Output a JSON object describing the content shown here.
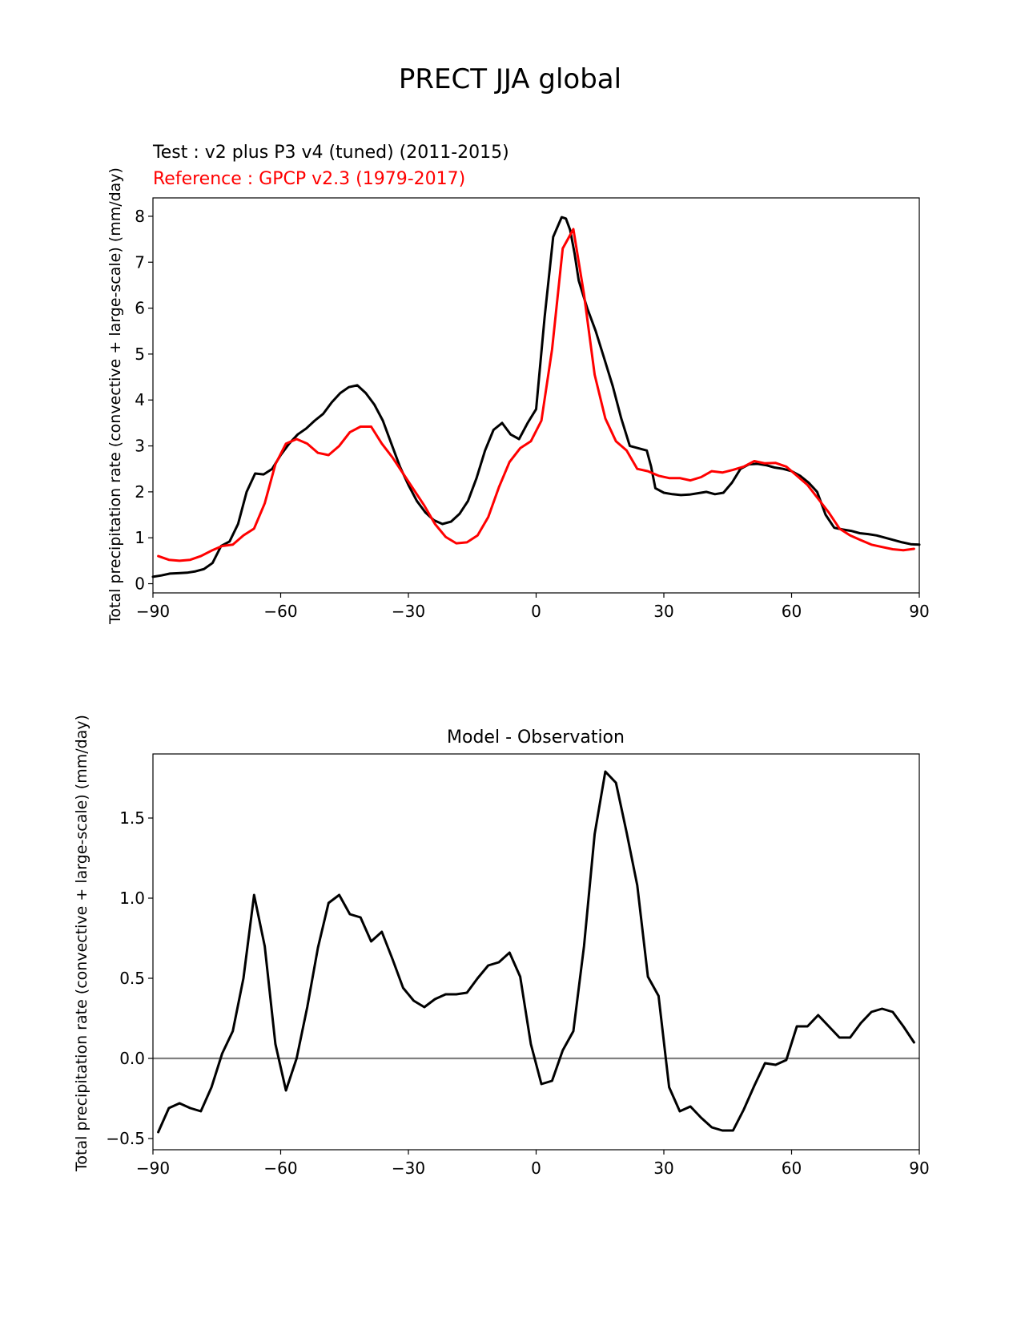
{
  "chart_data": [
    {
      "type": "line",
      "suptitle": "PRECT JJA global",
      "test_label": "Test : v2 plus P3 v4 (tuned) (2011-2015)",
      "reference_label": "Reference : GPCP v2.3 (1979-2017)",
      "xlabel": "",
      "ylabel": "Total precipitation rate (convective + large-scale) (mm/day)",
      "xlim": [
        -90,
        90
      ],
      "ylim": [
        -0.2,
        8.4
      ],
      "xticks": [
        -90,
        -60,
        -30,
        0,
        30,
        60,
        90
      ],
      "xtick_labels": [
        "−90",
        "−60",
        "−30",
        "0",
        "30",
        "60",
        "90"
      ],
      "yticks": [
        0,
        1,
        2,
        3,
        4,
        5,
        6,
        7,
        8
      ],
      "ytick_labels": [
        "0",
        "1",
        "2",
        "3",
        "4",
        "5",
        "6",
        "7",
        "8"
      ],
      "series": [
        {
          "name": "Test : v2 plus P3 v4 (tuned) (2011-2015)",
          "color": "#000000",
          "x": [
            -90,
            -88,
            -86,
            -84,
            -82,
            -80,
            -78,
            -76,
            -74,
            -72,
            -70,
            -68,
            -66,
            -64,
            -62,
            -60,
            -58,
            -56,
            -54,
            -52,
            -50,
            -48,
            -46,
            -44,
            -42,
            -40,
            -38,
            -36,
            -34,
            -32,
            -30,
            -28,
            -26,
            -24,
            -22,
            -20,
            -18,
            -16,
            -14,
            -12,
            -10,
            -8,
            -6,
            -4,
            -2,
            0,
            2,
            4,
            6,
            7,
            8,
            9,
            10,
            12,
            14,
            16,
            18,
            20,
            22,
            24,
            26,
            27,
            28,
            30,
            32,
            34,
            36,
            38,
            40,
            42,
            44,
            46,
            48,
            50,
            52,
            54,
            56,
            58,
            60,
            62,
            64,
            66,
            68,
            70,
            72,
            74,
            76,
            78,
            80,
            82,
            84,
            86,
            88,
            90
          ],
          "values": [
            0.15,
            0.18,
            0.22,
            0.23,
            0.24,
            0.27,
            0.32,
            0.45,
            0.82,
            0.92,
            1.3,
            2.0,
            2.4,
            2.38,
            2.5,
            2.8,
            3.05,
            3.25,
            3.38,
            3.55,
            3.7,
            3.95,
            4.15,
            4.28,
            4.32,
            4.15,
            3.9,
            3.55,
            3.05,
            2.55,
            2.15,
            1.8,
            1.55,
            1.38,
            1.3,
            1.35,
            1.52,
            1.8,
            2.3,
            2.9,
            3.35,
            3.5,
            3.25,
            3.15,
            3.5,
            3.8,
            5.8,
            7.55,
            7.98,
            7.95,
            7.7,
            7.2,
            6.6,
            6.0,
            5.5,
            4.9,
            4.3,
            3.6,
            3.0,
            2.95,
            2.9,
            2.55,
            2.08,
            1.98,
            1.95,
            1.93,
            1.94,
            1.97,
            2.0,
            1.95,
            1.98,
            2.2,
            2.5,
            2.6,
            2.61,
            2.58,
            2.53,
            2.5,
            2.45,
            2.35,
            2.2,
            2.0,
            1.5,
            1.22,
            1.18,
            1.15,
            1.1,
            1.08,
            1.05,
            1.0,
            0.95,
            0.9,
            0.86,
            0.85
          ]
        },
        {
          "name": "Reference : GPCP v2.3 (1979-2017)",
          "color": "#ff0000",
          "x": [
            -88.75,
            -86.25,
            -83.75,
            -81.25,
            -78.75,
            -76.25,
            -73.75,
            -71.25,
            -68.75,
            -66.25,
            -63.75,
            -61.25,
            -58.75,
            -56.25,
            -53.75,
            -51.25,
            -48.75,
            -46.25,
            -43.75,
            -41.25,
            -38.75,
            -36.25,
            -33.75,
            -31.25,
            -28.75,
            -26.25,
            -23.75,
            -21.25,
            -18.75,
            -16.25,
            -13.75,
            -11.25,
            -8.75,
            -6.25,
            -3.75,
            -1.25,
            1.25,
            3.75,
            6.25,
            8.75,
            11.25,
            13.75,
            16.25,
            18.75,
            21.25,
            23.75,
            26.25,
            28.75,
            31.25,
            33.75,
            36.25,
            38.75,
            41.25,
            43.75,
            46.25,
            48.75,
            51.25,
            53.75,
            56.25,
            58.75,
            61.25,
            63.75,
            66.25,
            68.75,
            71.25,
            73.75,
            76.25,
            78.75,
            81.25,
            83.75,
            86.25,
            88.75
          ],
          "values": [
            0.6,
            0.52,
            0.5,
            0.52,
            0.6,
            0.72,
            0.82,
            0.85,
            1.05,
            1.2,
            1.75,
            2.6,
            3.05,
            3.15,
            3.05,
            2.85,
            2.8,
            3.0,
            3.3,
            3.42,
            3.42,
            3.05,
            2.75,
            2.4,
            2.05,
            1.7,
            1.3,
            1.02,
            0.88,
            0.9,
            1.05,
            1.45,
            2.1,
            2.65,
            2.95,
            3.1,
            3.55,
            5.1,
            7.3,
            7.72,
            6.3,
            4.55,
            3.6,
            3.1,
            2.9,
            2.5,
            2.45,
            2.35,
            2.3,
            2.3,
            2.25,
            2.32,
            2.45,
            2.42,
            2.48,
            2.55,
            2.67,
            2.62,
            2.63,
            2.55,
            2.35,
            2.15,
            1.85,
            1.55,
            1.2,
            1.05,
            0.95,
            0.85,
            0.8,
            0.75,
            0.73,
            0.76
          ]
        }
      ]
    },
    {
      "type": "line",
      "title": "Model - Observation",
      "xlabel": "",
      "ylabel": "Total precipitation rate (convective + large-scale) (mm/day)",
      "xlim": [
        -90,
        90
      ],
      "ylim": [
        -0.57,
        1.9
      ],
      "xticks": [
        -90,
        -60,
        -30,
        0,
        30,
        60,
        90
      ],
      "xtick_labels": [
        "−90",
        "−60",
        "−30",
        "0",
        "30",
        "60",
        "90"
      ],
      "yticks": [
        -0.5,
        0.0,
        0.5,
        1.0,
        1.5
      ],
      "ytick_labels": [
        "−0.5",
        "0.0",
        "0.5",
        "1.0",
        "1.5"
      ],
      "zero_line_color": "#808080",
      "series": [
        {
          "name": "Model - Observation",
          "color": "#000000",
          "x": [
            -88.75,
            -86.25,
            -83.75,
            -81.25,
            -78.75,
            -76.25,
            -73.75,
            -71.25,
            -68.75,
            -66.25,
            -63.75,
            -61.25,
            -58.75,
            -56.25,
            -53.75,
            -51.25,
            -48.75,
            -46.25,
            -43.75,
            -41.25,
            -38.75,
            -36.25,
            -33.75,
            -31.25,
            -28.75,
            -26.25,
            -23.75,
            -21.25,
            -18.75,
            -16.25,
            -13.75,
            -11.25,
            -8.75,
            -6.25,
            -3.75,
            -1.25,
            1.25,
            3.75,
            6.25,
            8.75,
            11.25,
            13.75,
            16.25,
            18.75,
            21.25,
            23.75,
            26.25,
            28.75,
            31.25,
            33.75,
            36.25,
            38.75,
            41.25,
            43.75,
            46.25,
            48.75,
            51.25,
            53.75,
            56.25,
            58.75,
            61.25,
            63.75,
            66.25,
            68.75,
            71.25,
            73.75,
            76.25,
            78.75,
            81.25,
            83.75,
            86.25,
            88.75
          ],
          "values": [
            -0.46,
            -0.31,
            -0.28,
            -0.31,
            -0.33,
            -0.18,
            0.03,
            0.17,
            0.5,
            1.02,
            0.7,
            0.09,
            -0.2,
            0.0,
            0.32,
            0.69,
            0.97,
            1.02,
            0.9,
            0.88,
            0.73,
            0.79,
            0.62,
            0.44,
            0.36,
            0.32,
            0.37,
            0.4,
            0.4,
            0.41,
            0.5,
            0.58,
            0.6,
            0.66,
            0.51,
            0.09,
            -0.16,
            -0.14,
            0.05,
            0.17,
            0.7,
            1.4,
            1.79,
            1.72,
            1.41,
            1.08,
            0.51,
            0.39,
            -0.18,
            -0.33,
            -0.3,
            -0.37,
            -0.43,
            -0.45,
            -0.45,
            -0.32,
            -0.17,
            -0.03,
            -0.04,
            -0.01,
            0.2,
            0.2,
            0.27,
            0.2,
            0.13,
            0.13,
            0.22,
            0.29,
            0.31,
            0.29,
            0.2,
            0.1
          ]
        }
      ]
    }
  ]
}
